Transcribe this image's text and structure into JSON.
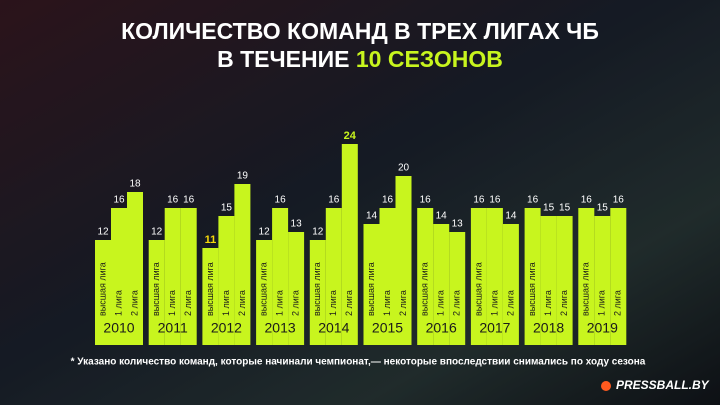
{
  "chart_data": {
    "type": "bar",
    "title": "КОЛИЧЕСТВО КОМАНД В ТРЕХ ЛИГАХ ЧБ",
    "subtitle": "В ТЕЧЕНИЕ",
    "subtitle_highlight": "10 СЕЗОНОВ",
    "categories": [
      "2010",
      "2011",
      "2012",
      "2013",
      "2014",
      "2015",
      "2016",
      "2017",
      "2018",
      "2019"
    ],
    "series": [
      {
        "name": "высшая лига",
        "color": "#c8f51e",
        "values": [
          12,
          12,
          11,
          12,
          12,
          14,
          16,
          16,
          16,
          16
        ]
      },
      {
        "name": "1 лига",
        "color": "#c8f51e",
        "values": [
          16,
          16,
          15,
          16,
          16,
          16,
          14,
          16,
          15,
          15
        ]
      },
      {
        "name": "2 лига",
        "color": "#c8f51e",
        "values": [
          18,
          16,
          19,
          13,
          24,
          20,
          13,
          14,
          15,
          16
        ]
      }
    ],
    "highlight_colors": {
      "min": "#f5d90a",
      "max": "#c8f51e"
    },
    "footnote": "* Указано количество команд, которые начинали чемпионат,— некоторые впоследствии снимались по ходу сезона",
    "source": "PRESSBALL.BY"
  }
}
